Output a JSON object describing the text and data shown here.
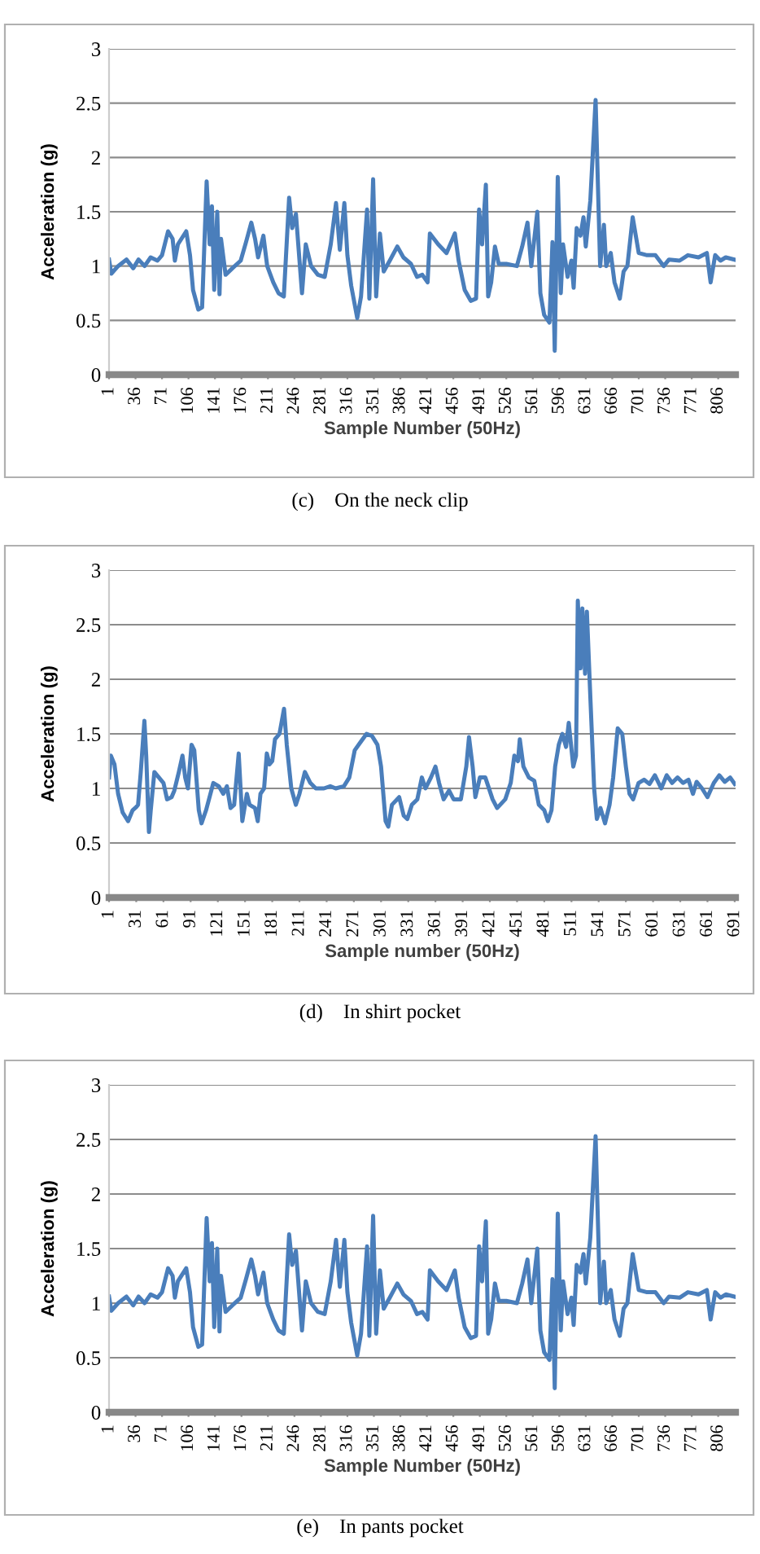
{
  "chart_data": [
    {
      "type": "line",
      "title": "(c)    On the neck clip",
      "xlabel": "Sample Number (50Hz)",
      "ylabel": "Acceleration (g)",
      "xlim": [
        1,
        829
      ],
      "ylim": [
        0,
        3
      ],
      "xticks": [
        1,
        36,
        71,
        106,
        141,
        176,
        211,
        246,
        281,
        316,
        351,
        386,
        421,
        456,
        491,
        526,
        561,
        596,
        631,
        666,
        701,
        736,
        771,
        806
      ],
      "yticks": [
        0,
        0.5,
        1,
        1.5,
        2,
        2.5,
        3
      ],
      "grid": "y",
      "series": [
        {
          "color": "#4a7ebb",
          "x": [
            1,
            4,
            13,
            24,
            33,
            40,
            48,
            56,
            65,
            71,
            79,
            85,
            88,
            92,
            103,
            108,
            112,
            119,
            124,
            130,
            134,
            137,
            140,
            144,
            147,
            149,
            155,
            164,
            175,
            182,
            189,
            194,
            198,
            205,
            210,
            218,
            225,
            232,
            239,
            243,
            248,
            256,
            261,
            268,
            277,
            286,
            294,
            301,
            306,
            312,
            316,
            321,
            329,
            334,
            342,
            345,
            350,
            354,
            359,
            364,
            372,
            382,
            390,
            400,
            408,
            415,
            422,
            425,
            436,
            447,
            458,
            463,
            471,
            479,
            486,
            490,
            494,
            499,
            502,
            506,
            511,
            516,
            526,
            540,
            547,
            554,
            559,
            567,
            571,
            576,
            583,
            587,
            590,
            594,
            598,
            601,
            607,
            612,
            615,
            619,
            624,
            628,
            631,
            637,
            644,
            650,
            655,
            658,
            664,
            669,
            676,
            681,
            686,
            693,
            701,
            712,
            723,
            734,
            741,
            755,
            766,
            780,
            791,
            796,
            802,
            809,
            816,
            827
          ],
          "values": [
            1.06,
            0.93,
            1.0,
            1.06,
            0.98,
            1.06,
            1.0,
            1.08,
            1.05,
            1.1,
            1.32,
            1.25,
            1.05,
            1.2,
            1.32,
            1.1,
            0.78,
            0.6,
            0.62,
            1.78,
            1.2,
            1.55,
            0.78,
            1.5,
            0.74,
            1.25,
            0.92,
            0.98,
            1.05,
            1.22,
            1.4,
            1.25,
            1.08,
            1.28,
            1.0,
            0.85,
            0.75,
            0.72,
            1.63,
            1.35,
            1.48,
            0.75,
            1.2,
            1.0,
            0.92,
            0.9,
            1.2,
            1.58,
            1.15,
            1.58,
            1.1,
            0.82,
            0.52,
            0.72,
            1.52,
            0.7,
            1.8,
            0.72,
            1.3,
            0.95,
            1.05,
            1.18,
            1.08,
            1.02,
            0.9,
            0.92,
            0.85,
            1.3,
            1.2,
            1.12,
            1.3,
            1.05,
            0.78,
            0.68,
            0.7,
            1.52,
            1.2,
            1.75,
            0.72,
            0.85,
            1.18,
            1.02,
            1.02,
            1.0,
            1.18,
            1.4,
            1.0,
            1.5,
            0.75,
            0.55,
            0.48,
            1.22,
            0.22,
            1.82,
            0.75,
            1.2,
            0.9,
            1.05,
            0.8,
            1.35,
            1.28,
            1.45,
            1.18,
            1.6,
            2.53,
            1.0,
            1.38,
            1.0,
            1.12,
            0.85,
            0.7,
            0.95,
            1.0,
            1.45,
            1.12,
            1.1,
            1.1,
            1.0,
            1.06,
            1.05,
            1.1,
            1.08,
            1.12,
            0.85,
            1.1,
            1.05,
            1.08,
            1.06
          ]
        }
      ]
    },
    {
      "type": "line",
      "title": "(d)    In shirt pocket",
      "xlabel": "Sample number (50Hz)",
      "ylabel": "Acceleration (g)",
      "xlim": [
        1,
        692
      ],
      "ylim": [
        0,
        3
      ],
      "xticks": [
        1,
        31,
        61,
        91,
        121,
        151,
        181,
        211,
        241,
        271,
        301,
        331,
        361,
        391,
        421,
        451,
        481,
        511,
        541,
        571,
        601,
        631,
        661,
        691
      ],
      "yticks": [
        0,
        0.5,
        1,
        1.5,
        2,
        2.5,
        3
      ],
      "grid": "y",
      "series": [
        {
          "color": "#4a7ebb",
          "x": [
            1,
            3,
            7,
            11,
            16,
            22,
            27,
            31,
            33,
            36,
            40,
            42,
            45,
            47,
            51,
            56,
            61,
            65,
            70,
            73,
            78,
            82,
            85,
            88,
            92,
            95,
            100,
            103,
            108,
            116,
            122,
            127,
            131,
            135,
            139,
            144,
            148,
            153,
            156,
            162,
            165,
            168,
            172,
            175,
            178,
            181,
            184,
            189,
            194,
            197,
            202,
            207,
            211,
            217,
            223,
            229,
            238,
            245,
            251,
            260,
            266,
            272,
            278,
            285,
            291,
            297,
            301,
            306,
            309,
            313,
            321,
            326,
            330,
            335,
            341,
            346,
            350,
            356,
            361,
            365,
            370,
            376,
            381,
            389,
            395,
            398,
            402,
            405,
            410,
            416,
            424,
            429,
            438,
            444,
            448,
            452,
            454,
            458,
            464,
            470,
            475,
            481,
            485,
            489,
            493,
            497,
            501,
            505,
            508,
            513,
            516,
            518,
            521,
            523,
            526,
            528,
            532,
            536,
            539,
            543,
            548,
            553,
            557,
            562,
            567,
            571,
            575,
            579,
            585,
            591,
            597,
            603,
            610,
            616,
            622,
            628,
            634,
            640,
            645,
            649,
            655,
            661,
            668,
            674,
            680,
            686,
            691
          ],
          "values": [
            1.1,
            1.3,
            1.22,
            0.95,
            0.78,
            0.7,
            0.8,
            0.83,
            0.85,
            1.15,
            1.62,
            1.3,
            0.6,
            0.8,
            1.15,
            1.1,
            1.05,
            0.9,
            0.92,
            0.98,
            1.15,
            1.3,
            1.1,
            1.0,
            1.4,
            1.35,
            0.8,
            0.68,
            0.8,
            1.05,
            1.02,
            0.95,
            1.02,
            0.82,
            0.85,
            1.32,
            0.7,
            0.95,
            0.85,
            0.82,
            0.7,
            0.95,
            1.0,
            1.32,
            1.22,
            1.25,
            1.45,
            1.5,
            1.73,
            1.4,
            1.0,
            0.85,
            0.95,
            1.15,
            1.05,
            1.0,
            1.0,
            1.02,
            1.0,
            1.02,
            1.1,
            1.35,
            1.42,
            1.5,
            1.48,
            1.4,
            1.2,
            0.7,
            0.65,
            0.85,
            0.92,
            0.75,
            0.72,
            0.85,
            0.9,
            1.1,
            1.0,
            1.1,
            1.2,
            1.05,
            0.9,
            0.98,
            0.9,
            0.9,
            1.2,
            1.47,
            1.2,
            0.92,
            1.1,
            1.1,
            0.9,
            0.82,
            0.9,
            1.05,
            1.3,
            1.25,
            1.45,
            1.2,
            1.1,
            1.07,
            0.85,
            0.8,
            0.7,
            0.8,
            1.2,
            1.4,
            1.5,
            1.38,
            1.6,
            1.2,
            1.3,
            2.72,
            2.1,
            2.65,
            2.05,
            2.62,
            1.8,
            1.0,
            0.72,
            0.82,
            0.68,
            0.85,
            1.1,
            1.55,
            1.5,
            1.2,
            0.95,
            0.9,
            1.05,
            1.08,
            1.04,
            1.12,
            1.0,
            1.12,
            1.05,
            1.1,
            1.05,
            1.08,
            0.95,
            1.06,
            1.0,
            0.92,
            1.05,
            1.12,
            1.06,
            1.1,
            1.04
          ]
        }
      ]
    },
    {
      "type": "line",
      "title": "(e)    In pants pocket",
      "xlabel": "Sample Number (50Hz)",
      "ylabel": "Acceleration (g)",
      "xlim": [
        1,
        829
      ],
      "ylim": [
        0,
        3
      ],
      "xticks": [
        1,
        36,
        71,
        106,
        141,
        176,
        211,
        246,
        281,
        316,
        351,
        386,
        421,
        456,
        491,
        526,
        561,
        596,
        631,
        666,
        701,
        736,
        771,
        806
      ],
      "yticks": [
        0,
        0.5,
        1,
        1.5,
        2,
        2.5,
        3
      ],
      "grid": "y",
      "series": [
        {
          "color": "#4a7ebb",
          "x": [
            1,
            4,
            13,
            24,
            33,
            40,
            48,
            56,
            65,
            71,
            79,
            85,
            88,
            92,
            103,
            108,
            112,
            119,
            124,
            130,
            134,
            137,
            140,
            144,
            147,
            149,
            155,
            164,
            175,
            182,
            189,
            194,
            198,
            205,
            210,
            218,
            225,
            232,
            239,
            243,
            248,
            256,
            261,
            268,
            277,
            286,
            294,
            301,
            306,
            312,
            316,
            321,
            329,
            334,
            342,
            345,
            350,
            354,
            359,
            364,
            372,
            382,
            390,
            400,
            408,
            415,
            422,
            425,
            436,
            447,
            458,
            463,
            471,
            479,
            486,
            490,
            494,
            499,
            502,
            506,
            511,
            516,
            526,
            540,
            547,
            554,
            559,
            567,
            571,
            576,
            583,
            587,
            590,
            594,
            598,
            601,
            607,
            612,
            615,
            619,
            624,
            628,
            631,
            637,
            644,
            650,
            655,
            658,
            664,
            669,
            676,
            681,
            686,
            693,
            701,
            712,
            723,
            734,
            741,
            755,
            766,
            780,
            791,
            796,
            802,
            809,
            816,
            827
          ],
          "values": [
            1.06,
            0.93,
            1.0,
            1.06,
            0.98,
            1.06,
            1.0,
            1.08,
            1.05,
            1.1,
            1.32,
            1.25,
            1.05,
            1.2,
            1.32,
            1.1,
            0.78,
            0.6,
            0.62,
            1.78,
            1.2,
            1.55,
            0.78,
            1.5,
            0.74,
            1.25,
            0.92,
            0.98,
            1.05,
            1.22,
            1.4,
            1.25,
            1.08,
            1.28,
            1.0,
            0.85,
            0.75,
            0.72,
            1.63,
            1.35,
            1.48,
            0.75,
            1.2,
            1.0,
            0.92,
            0.9,
            1.2,
            1.58,
            1.15,
            1.58,
            1.1,
            0.82,
            0.52,
            0.72,
            1.52,
            0.7,
            1.8,
            0.72,
            1.3,
            0.95,
            1.05,
            1.18,
            1.08,
            1.02,
            0.9,
            0.92,
            0.85,
            1.3,
            1.2,
            1.12,
            1.3,
            1.05,
            0.78,
            0.68,
            0.7,
            1.52,
            1.2,
            1.75,
            0.72,
            0.85,
            1.18,
            1.02,
            1.02,
            1.0,
            1.18,
            1.4,
            1.0,
            1.5,
            0.75,
            0.55,
            0.48,
            1.22,
            0.22,
            1.82,
            0.75,
            1.2,
            0.9,
            1.05,
            0.8,
            1.35,
            1.28,
            1.45,
            1.18,
            1.6,
            2.53,
            1.0,
            1.38,
            1.0,
            1.12,
            0.85,
            0.7,
            0.95,
            1.0,
            1.45,
            1.12,
            1.1,
            1.1,
            1.0,
            1.06,
            1.05,
            1.1,
            1.08,
            1.12,
            0.85,
            1.1,
            1.05,
            1.08,
            1.06
          ]
        }
      ]
    }
  ]
}
